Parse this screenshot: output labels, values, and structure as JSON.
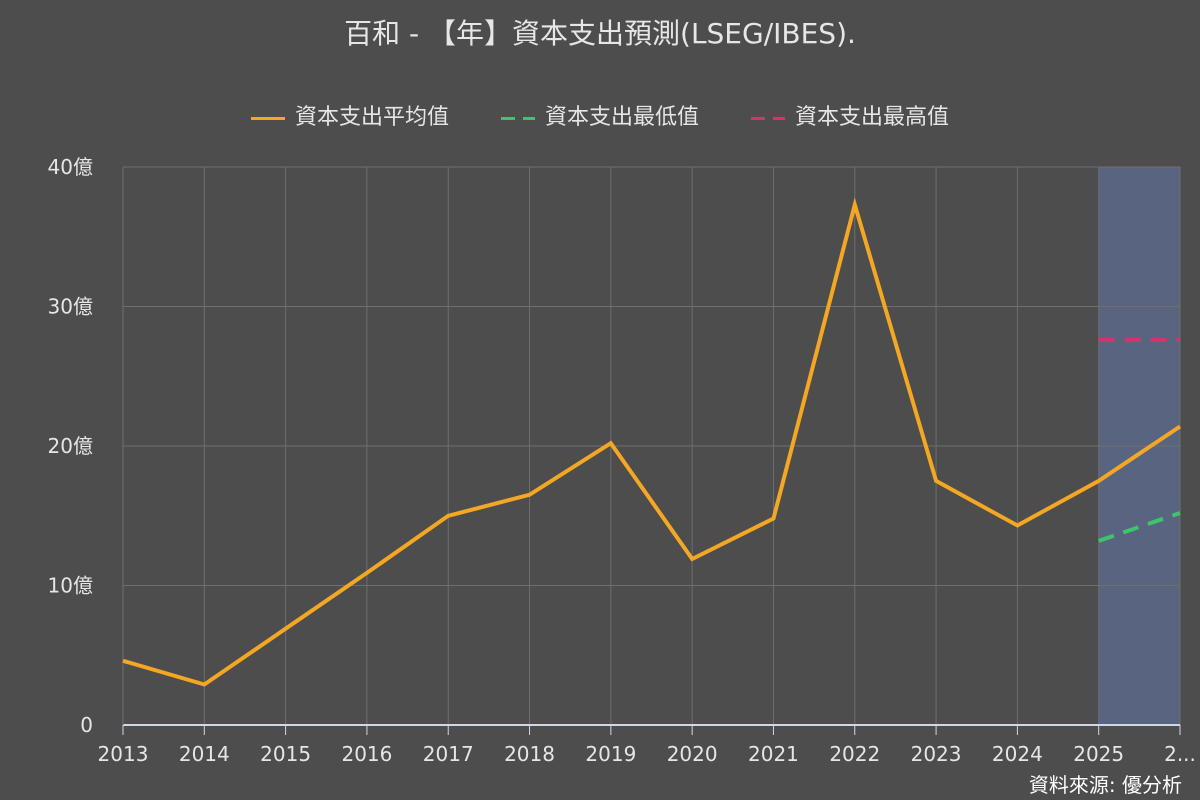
{
  "chart_data": {
    "type": "line",
    "title": "百和 - 【年】資本支出預測(LSEG/IBES).",
    "x_tick_labels": [
      "2013",
      "2014",
      "2015",
      "2016",
      "2017",
      "2018",
      "2019",
      "2020",
      "2021",
      "2022",
      "2023",
      "2024",
      "2025",
      "2..."
    ],
    "y_tick_labels": [
      "0",
      "10億",
      "20億",
      "30億",
      "40億"
    ],
    "ylim": [
      0,
      40
    ],
    "y_unit": "億",
    "grid": true,
    "legend_position": "top",
    "forecast_region": {
      "from": "2025",
      "to": "2026",
      "color": "#5a6683"
    },
    "series": [
      {
        "name": "資本支出平均值",
        "color": "#f5a623",
        "style": "solid",
        "points": [
          {
            "x": "2013",
            "y": 4.6
          },
          {
            "x": "2014",
            "y": 2.9
          },
          {
            "x": "2015",
            "y": 6.9
          },
          {
            "x": "2016",
            "y": 10.9
          },
          {
            "x": "2017",
            "y": 15.0
          },
          {
            "x": "2018",
            "y": 16.5
          },
          {
            "x": "2019",
            "y": 20.2
          },
          {
            "x": "2020",
            "y": 11.9
          },
          {
            "x": "2021",
            "y": 14.8
          },
          {
            "x": "2022",
            "y": 37.3
          },
          {
            "x": "2023",
            "y": 17.5
          },
          {
            "x": "2024",
            "y": 14.3
          },
          {
            "x": "2025",
            "y": 17.5
          },
          {
            "x": "2026",
            "y": 21.4
          }
        ]
      },
      {
        "name": "資本支出最低值",
        "color": "#3fc36b",
        "style": "dashed",
        "points": [
          {
            "x": "2025",
            "y": 13.2
          },
          {
            "x": "2026",
            "y": 15.2
          }
        ]
      },
      {
        "name": "資本支出最高值",
        "color": "#d6336c",
        "style": "dashed",
        "points": [
          {
            "x": "2025",
            "y": 27.6
          },
          {
            "x": "2026",
            "y": 27.6
          }
        ]
      }
    ]
  },
  "legend": {
    "avg_label": "資本支出平均值",
    "min_label": "資本支出最低值",
    "max_label": "資本支出最高值"
  },
  "source_text": "資料來源: 優分析",
  "colors": {
    "background": "#4d4d4d",
    "grid": "#6e6e6e",
    "axis": "#d0d8e8",
    "text": "#e6e6e6"
  }
}
